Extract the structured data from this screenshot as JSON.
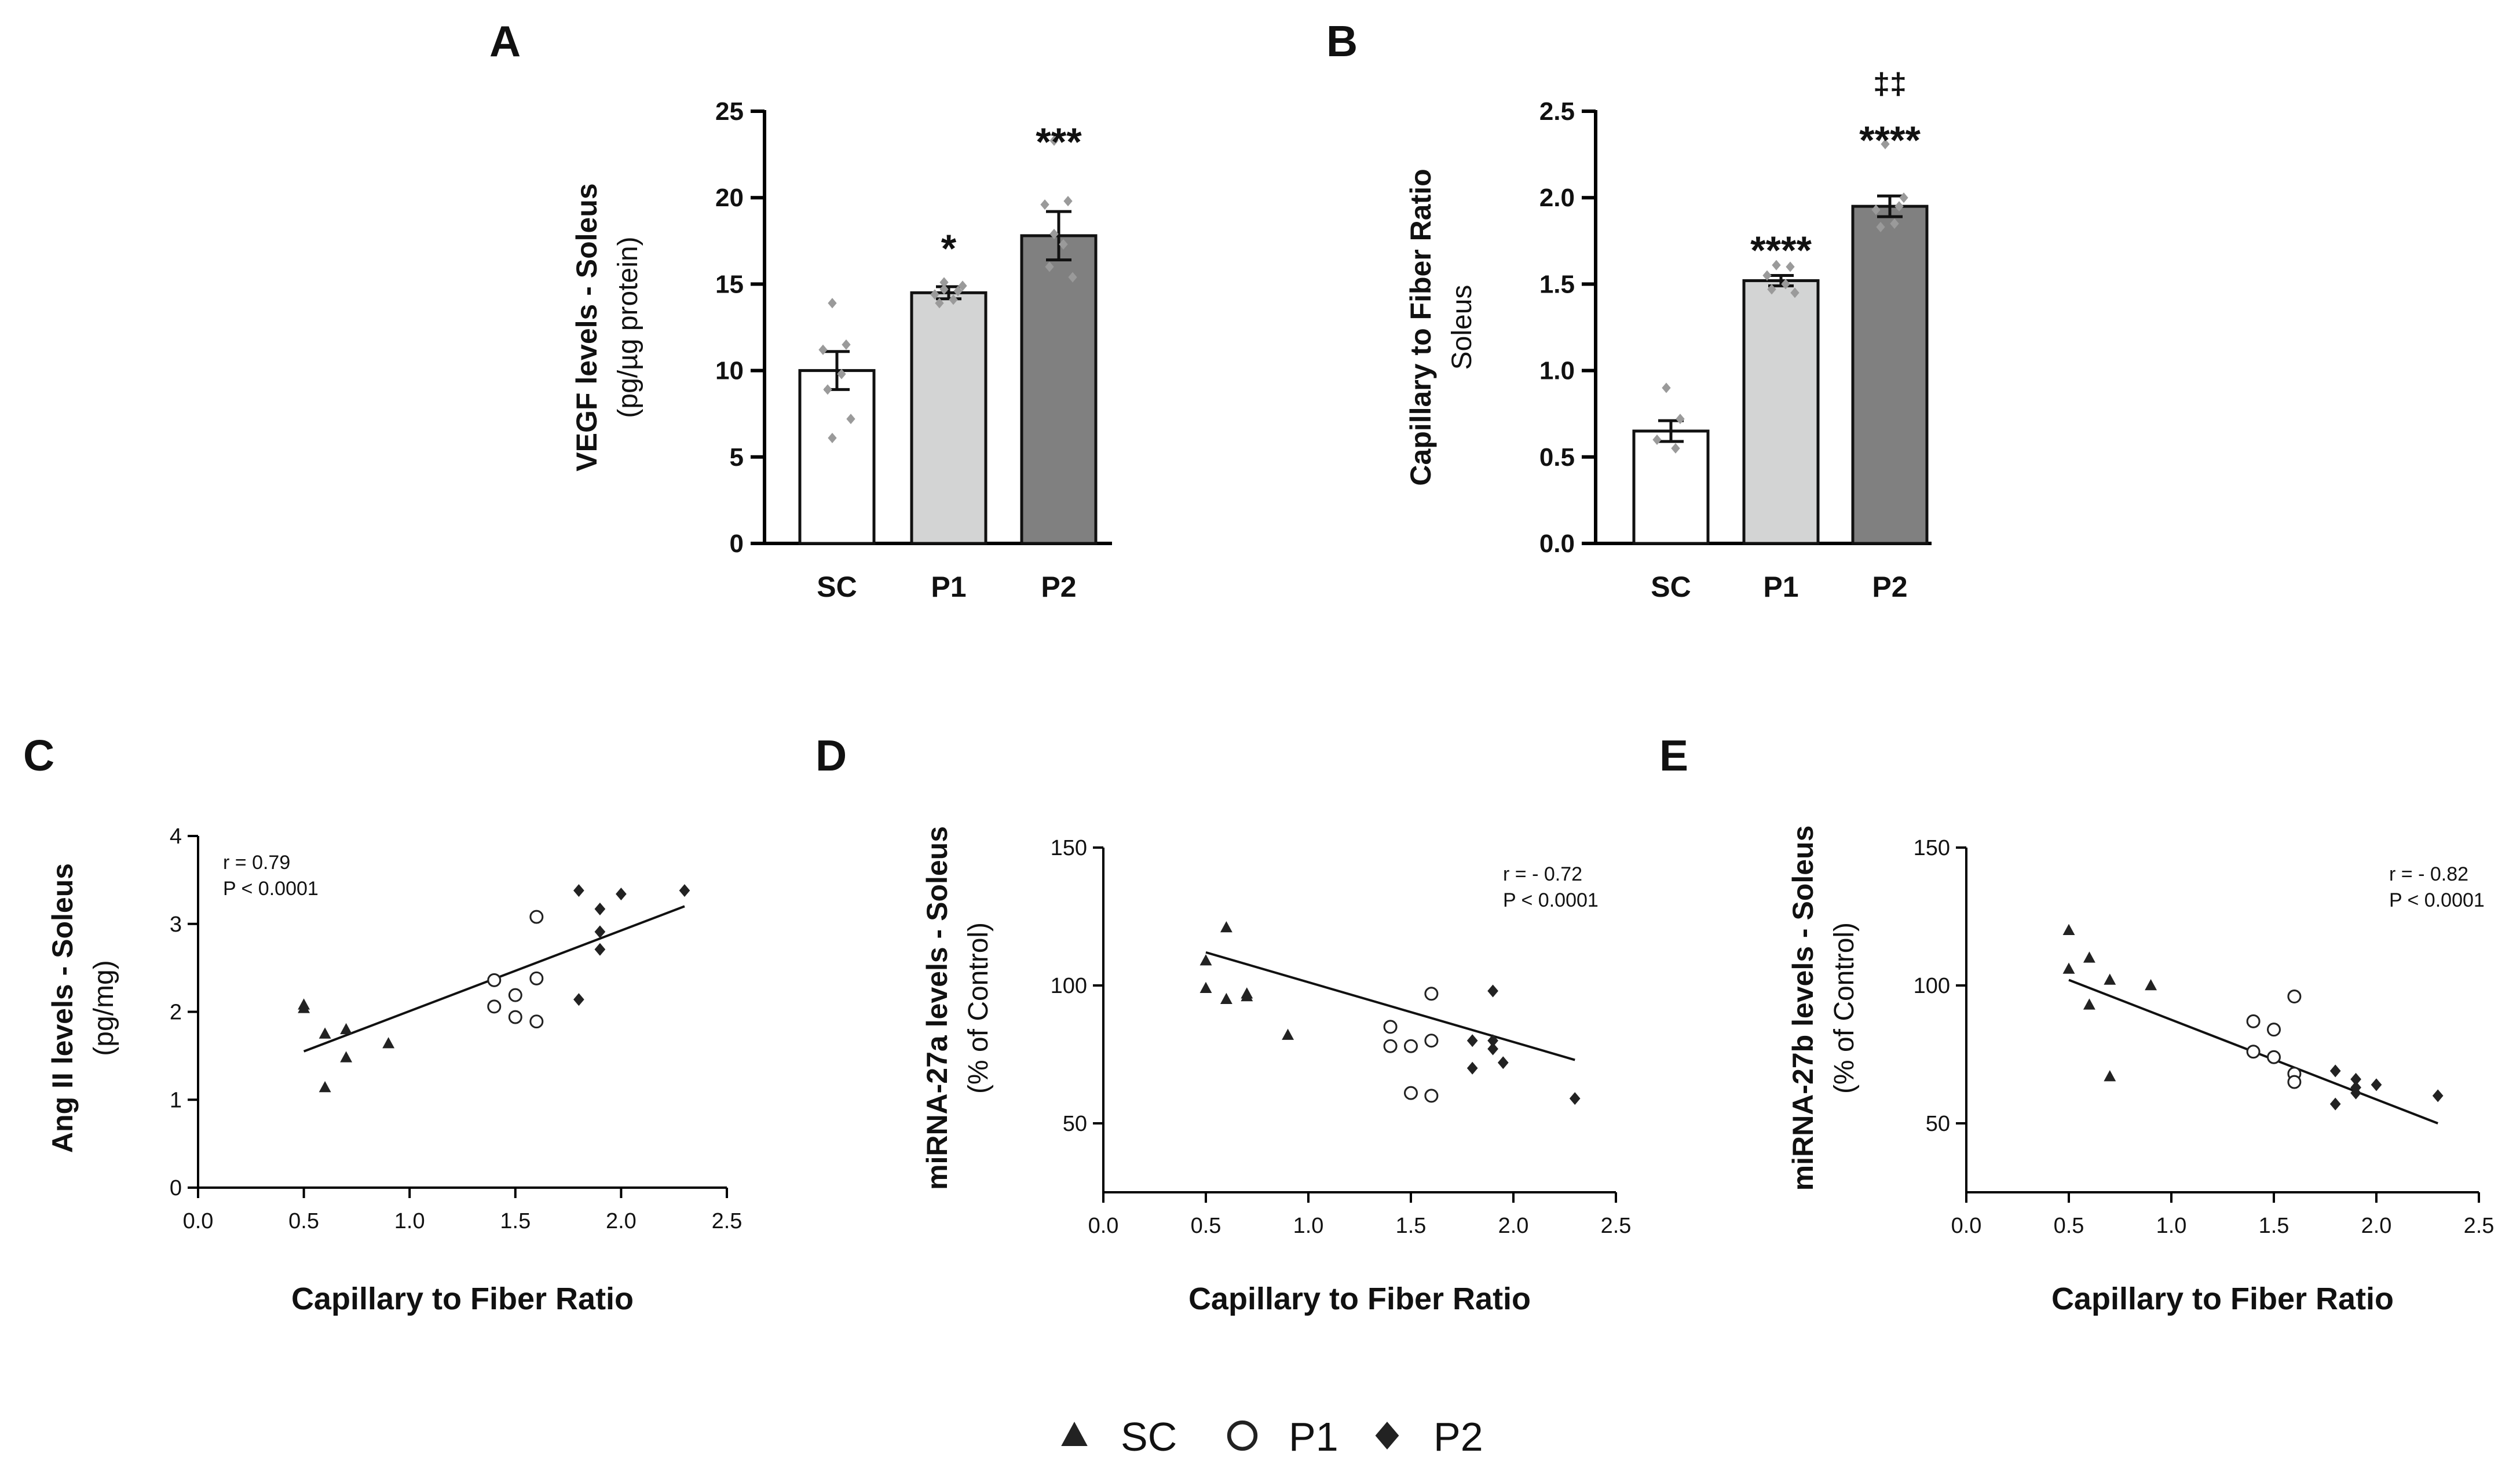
{
  "chart_data": [
    {
      "panel": "A",
      "type": "bar",
      "categories": [
        "SC",
        "P1",
        "P2"
      ],
      "values": [
        10.0,
        14.5,
        17.8
      ],
      "errors": [
        1.1,
        0.35,
        1.4
      ],
      "points": [
        [
          13.9,
          11.5,
          11.2,
          9.8,
          8.9,
          7.2,
          6.1
        ],
        [
          14.7,
          14.6,
          14.4,
          14.1,
          13.9,
          14.9,
          15.1
        ],
        [
          23.3,
          19.8,
          19.6,
          17.3,
          16.0,
          15.4,
          17.9
        ]
      ],
      "fills": [
        "#ffffff",
        "#d3d4d4",
        "#808080"
      ],
      "significance": [
        "",
        "*",
        "***"
      ],
      "ylabel": "VEGF levels - Soleus",
      "ylabel2": "(pg/µg protein)",
      "ylim": [
        0,
        25
      ],
      "yticks": [
        "0",
        "5",
        "10",
        "15",
        "20",
        "25"
      ]
    },
    {
      "panel": "B",
      "type": "bar",
      "categories": [
        "SC",
        "P1",
        "P2"
      ],
      "values": [
        0.65,
        1.52,
        1.95
      ],
      "errors": [
        0.06,
        0.03,
        0.06
      ],
      "points": [
        [
          0.9,
          0.72,
          0.6,
          0.55
        ],
        [
          1.61,
          1.6,
          1.55,
          1.5,
          1.47,
          1.45
        ],
        [
          2.31,
          1.95,
          1.93,
          1.85,
          1.83,
          2.0
        ]
      ],
      "fills": [
        "#ffffff",
        "#d3d4d4",
        "#808080"
      ],
      "significance": [
        "",
        "****",
        "****"
      ],
      "significance2": [
        "",
        "",
        "‡‡"
      ],
      "ylabel": "Capillary to Fiber Ratio",
      "ylabel2": "Soleus",
      "ylim": [
        0,
        2.5
      ],
      "yticks": [
        "0.0",
        "0.5",
        "1.0",
        "1.5",
        "2.0",
        "2.5"
      ]
    },
    {
      "panel": "C",
      "type": "scatter",
      "series": [
        {
          "name": "SC",
          "marker": "triangle",
          "x": [
            0.5,
            0.5,
            0.6,
            0.6,
            0.7,
            0.7,
            0.9
          ],
          "y": [
            2.08,
            2.04,
            1.75,
            1.14,
            1.8,
            1.48,
            1.64
          ]
        },
        {
          "name": "P1",
          "marker": "circle",
          "x": [
            1.4,
            1.4,
            1.5,
            1.5,
            1.6,
            1.6,
            1.6
          ],
          "y": [
            2.36,
            2.06,
            2.19,
            1.94,
            3.08,
            2.38,
            1.89
          ]
        },
        {
          "name": "P2",
          "marker": "diamond",
          "x": [
            1.8,
            1.8,
            1.9,
            1.9,
            1.9,
            2.0,
            2.3
          ],
          "y": [
            3.38,
            2.14,
            3.17,
            2.91,
            2.71,
            3.34,
            3.38
          ]
        }
      ],
      "fit": {
        "x": [
          0.5,
          2.3
        ],
        "y": [
          1.55,
          3.2
        ]
      },
      "stats": [
        "r = 0.79",
        "P < 0.0001"
      ],
      "xlabel": "Capillary to Fiber Ratio",
      "ylabel": "Ang II levels - Soleus",
      "ylabel2": "(pg/mg)",
      "xlim": [
        0,
        2.5
      ],
      "ylim": [
        0,
        4
      ],
      "xticks": [
        "0.0",
        "0.5",
        "1.0",
        "1.5",
        "2.0",
        "2.5"
      ],
      "yticks": [
        "0",
        "1",
        "2",
        "3",
        "4"
      ]
    },
    {
      "panel": "D",
      "type": "scatter",
      "series": [
        {
          "name": "SC",
          "marker": "triangle",
          "x": [
            0.5,
            0.5,
            0.6,
            0.6,
            0.7,
            0.7,
            0.9
          ],
          "y": [
            109,
            99,
            121,
            95,
            97,
            96,
            82
          ]
        },
        {
          "name": "P1",
          "marker": "circle",
          "x": [
            1.4,
            1.4,
            1.5,
            1.5,
            1.6,
            1.6,
            1.6
          ],
          "y": [
            85,
            78,
            78,
            61,
            97,
            80,
            60
          ]
        },
        {
          "name": "P2",
          "marker": "diamond",
          "x": [
            1.8,
            1.8,
            1.9,
            1.9,
            1.9,
            1.95,
            2.3
          ],
          "y": [
            80,
            70,
            98,
            77,
            80,
            72,
            59
          ]
        }
      ],
      "fit": {
        "x": [
          0.5,
          2.3
        ],
        "y": [
          112,
          73
        ]
      },
      "stats": [
        "r = - 0.72",
        "P < 0.0001"
      ],
      "xlabel": "Capillary to Fiber Ratio",
      "ylabel": "miRNA-27a levels - Soleus",
      "ylabel2": "(% of Control)",
      "xlim": [
        0,
        2.5
      ],
      "ylim": [
        25,
        150
      ],
      "xticks": [
        "0.0",
        "0.5",
        "1.0",
        "1.5",
        "2.0",
        "2.5"
      ],
      "yticks": [
        "50",
        "100",
        "150"
      ]
    },
    {
      "panel": "E",
      "type": "scatter",
      "series": [
        {
          "name": "SC",
          "marker": "triangle",
          "x": [
            0.5,
            0.5,
            0.6,
            0.6,
            0.7,
            0.7,
            0.9
          ],
          "y": [
            120,
            106,
            110,
            93,
            102,
            67,
            100
          ]
        },
        {
          "name": "P1",
          "marker": "circle",
          "x": [
            1.4,
            1.4,
            1.5,
            1.5,
            1.6,
            1.6,
            1.6
          ],
          "y": [
            87,
            76,
            84,
            74,
            96,
            68,
            65
          ]
        },
        {
          "name": "P2",
          "marker": "diamond",
          "x": [
            1.8,
            1.8,
            1.9,
            1.9,
            1.9,
            2.0,
            2.3
          ],
          "y": [
            69,
            57,
            66,
            63,
            61,
            64,
            60
          ]
        }
      ],
      "fit": {
        "x": [
          0.5,
          2.3
        ],
        "y": [
          102,
          50
        ]
      },
      "stats": [
        "r = - 0.82",
        "P < 0.0001"
      ],
      "xlabel": "Capillary to Fiber Ratio",
      "ylabel": "miRNA-27b levels - Soleus",
      "ylabel2": "(% of Control)",
      "xlim": [
        0,
        2.5
      ],
      "ylim": [
        25,
        150
      ],
      "xticks": [
        "0.0",
        "0.5",
        "1.0",
        "1.5",
        "2.0",
        "2.5"
      ],
      "yticks": [
        "50",
        "100",
        "150"
      ]
    }
  ],
  "legend": {
    "position": "bottom-center",
    "items": [
      {
        "label": "SC",
        "marker": "triangle"
      },
      {
        "label": "P1",
        "marker": "circle"
      },
      {
        "label": "P2",
        "marker": "diamond"
      }
    ]
  }
}
